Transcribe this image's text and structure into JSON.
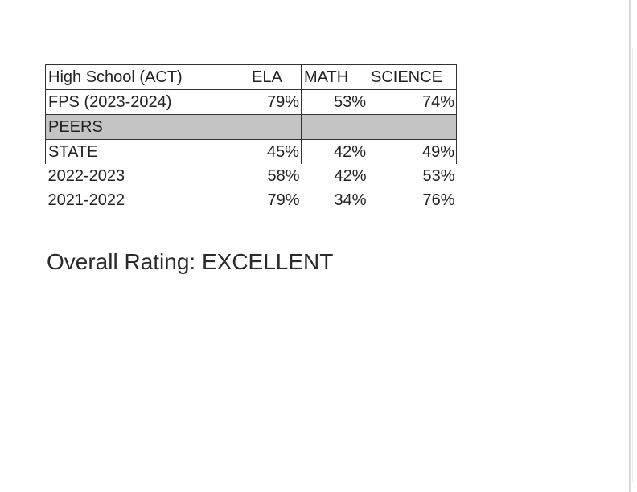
{
  "table": {
    "header": {
      "label": "High School (ACT)",
      "ela": "ELA",
      "math": "MATH",
      "science": "SCIENCE"
    },
    "rows": [
      {
        "label": "FPS (2023-2024)",
        "ela": "79%",
        "math": "53%",
        "science": "74%"
      },
      {
        "label": "PEERS",
        "ela": "",
        "math": "",
        "science": ""
      },
      {
        "label": "STATE",
        "ela": "45%",
        "math": "42%",
        "science": "49%"
      },
      {
        "label": "2022-2023",
        "ela": "58%",
        "math": "42%",
        "science": "53%"
      },
      {
        "label": "2021-2022",
        "ela": "79%",
        "math": "34%",
        "science": "76%"
      }
    ]
  },
  "rating": {
    "text": "Overall Rating: EXCELLENT"
  },
  "colors": {
    "shaded_row": "#c4c4c4",
    "border": "#333333",
    "text": "#222222"
  }
}
